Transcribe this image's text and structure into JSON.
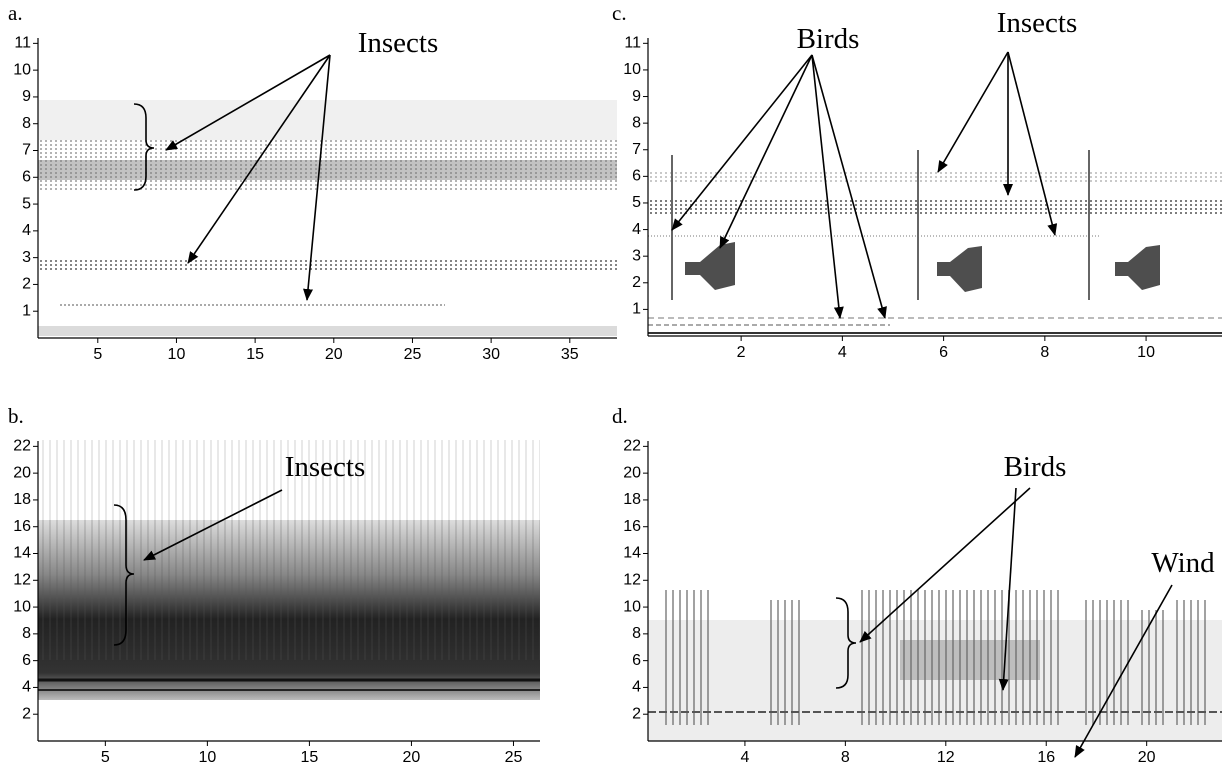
{
  "chart_data": [
    {
      "type": "spectrogram",
      "panel_label": "a.",
      "annotations": [
        "Insects"
      ],
      "xlim": [
        1.2,
        38
      ],
      "ylim": [
        0,
        11.2
      ],
      "xticks": [
        5,
        10,
        15,
        20,
        25,
        30,
        35
      ],
      "yticks": [
        1,
        2,
        3,
        4,
        5,
        6,
        7,
        8,
        9,
        10,
        11
      ]
    },
    {
      "type": "spectrogram",
      "panel_label": "b.",
      "annotations": [
        "Insects"
      ],
      "xlim": [
        1.7,
        26.3
      ],
      "ylim": [
        0,
        22.4
      ],
      "xticks": [
        5,
        10,
        15,
        20,
        25
      ],
      "yticks": [
        2,
        4,
        6,
        8,
        10,
        12,
        14,
        16,
        18,
        20,
        22
      ]
    },
    {
      "type": "spectrogram",
      "panel_label": "c.",
      "annotations": [
        "Birds",
        "Insects"
      ],
      "xlim": [
        0.16,
        11.5
      ],
      "ylim": [
        0,
        11.2
      ],
      "xticks": [
        2,
        4,
        6,
        8,
        10
      ],
      "yticks": [
        1,
        2,
        3,
        4,
        5,
        6,
        7,
        8,
        9,
        10,
        11
      ]
    },
    {
      "type": "spectrogram",
      "panel_label": "d.",
      "annotations": [
        "Birds",
        "Wind"
      ],
      "xlim": [
        0.14,
        23
      ],
      "ylim": [
        0,
        22.4
      ],
      "xticks": [
        4,
        8,
        12,
        16,
        20
      ],
      "yticks": [
        2,
        4,
        6,
        8,
        10,
        12,
        14,
        16,
        18,
        20,
        22
      ]
    }
  ]
}
